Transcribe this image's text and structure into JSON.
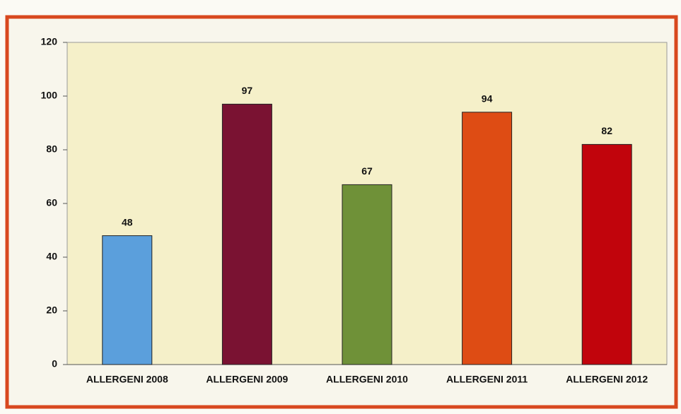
{
  "chart_data": {
    "type": "bar",
    "categories": [
      "ALLERGENI 2008",
      "ALLERGENI 2009",
      "ALLERGENI 2010",
      "ALLERGENI 2011",
      "ALLERGENI 2012"
    ],
    "values": [
      48,
      97,
      67,
      94,
      82
    ],
    "colors": [
      "#5b9fdc",
      "#7a1232",
      "#6f9138",
      "#de4c14",
      "#c1040c"
    ],
    "ylim": [
      0,
      120
    ],
    "yticks": [
      0,
      20,
      40,
      60,
      80,
      100,
      120
    ],
    "grid": false
  }
}
